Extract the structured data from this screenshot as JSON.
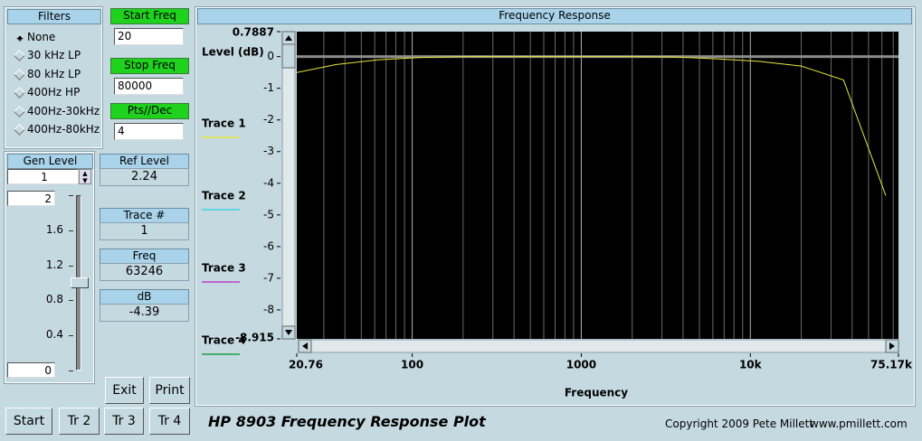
{
  "filters": {
    "title": "Filters",
    "options": [
      "None",
      "30 kHz LP",
      "80 kHz LP",
      "400Hz HP",
      "400Hz-30kHz",
      "400Hz-80kHz"
    ],
    "selected": 0
  },
  "start_freq": {
    "label": "Start Freq",
    "value": "20"
  },
  "stop_freq": {
    "label": "Stop Freq",
    "value": "80000"
  },
  "pts_dec": {
    "label": "Pts//Dec",
    "value": "4"
  },
  "gen_level": {
    "label": "Gen Level",
    "value": 1,
    "slider_min": 0,
    "slider_max": 2,
    "slider_ticks": [
      1.6,
      1.2,
      0.8,
      0.4
    ]
  },
  "readouts": [
    {
      "label": "Ref Level",
      "value": "2.24"
    },
    {
      "label": "Trace #",
      "value": "1"
    },
    {
      "label": "Freq",
      "value": "63246"
    },
    {
      "label": "dB",
      "value": "-4.39"
    }
  ],
  "buttons": [
    "Exit",
    "Print",
    "Start",
    "Tr 2",
    "Tr 3",
    "Tr 4"
  ],
  "footer": {
    "title": "HP 8903 Frequency Response Plot",
    "copyright": "Copyright 2009 Pete Millett",
    "url": "www.pmillett.com"
  },
  "chart_data": {
    "type": "line",
    "title": "Frequency Response",
    "y_label": "Level (dB)",
    "x_label": "Frequency",
    "x_log": true,
    "x_minor_grid": true,
    "reference_line": 0,
    "xlim": [
      20.76,
      75170
    ],
    "xticks": [
      20.76,
      100,
      1000,
      {
        "value": 10000,
        "label": "10k"
      },
      {
        "value": 75170,
        "label": "75.17k"
      }
    ],
    "ylim": [
      -8.915,
      0.7887
    ],
    "yticks": [
      0.7887,
      0,
      -1,
      -2,
      -3,
      -4,
      -5,
      -6,
      -7,
      -8,
      -8.915
    ],
    "x": [
      20,
      35.57,
      63.25,
      112.5,
      200,
      355.7,
      632.5,
      1125,
      2000,
      3557,
      6325,
      11247,
      20000,
      35566,
      63246
    ],
    "series": [
      {
        "name": "Trace 1",
        "color": "#e6e63c",
        "values": [
          -0.52,
          -0.25,
          -0.1,
          -0.03,
          0,
          0,
          0,
          0,
          0,
          -0.01,
          -0.07,
          -0.15,
          -0.3,
          -0.74,
          -4.39
        ]
      },
      {
        "name": "Trace 2",
        "color": "#3fd6e6",
        "values": [
          null,
          null,
          null,
          null,
          null,
          null,
          null,
          null,
          null,
          null,
          null,
          null,
          null,
          null,
          null
        ]
      },
      {
        "name": "Trace 3",
        "color": "#c03ccc",
        "values": [
          null,
          null,
          null,
          null,
          null,
          null,
          null,
          null,
          null,
          null,
          null,
          null,
          null,
          null,
          null
        ]
      },
      {
        "name": "Trace 4",
        "color": "#1ea03c",
        "values": [
          null,
          null,
          null,
          null,
          null,
          null,
          null,
          null,
          null,
          null,
          null,
          null,
          null,
          null,
          null
        ]
      }
    ]
  }
}
